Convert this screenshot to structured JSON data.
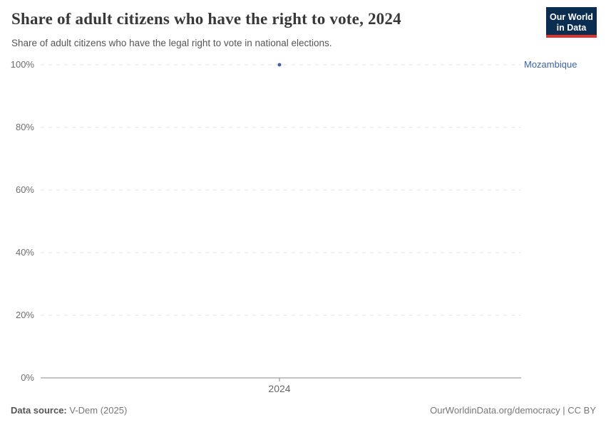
{
  "header": {
    "title": "Share of adult citizens who have the right to vote, 2024",
    "subtitle": "Share of adult citizens who have the legal right to vote in national elections.",
    "logo": {
      "line1": "Our World",
      "line2": "in Data",
      "bg_color": "#0b2d51",
      "accent_color": "#e0332c"
    }
  },
  "chart_data": {
    "type": "scatter",
    "title": "Share of adult citizens who have the right to vote, 2024",
    "series": [
      {
        "name": "Mozambique",
        "x": [
          2024
        ],
        "y": [
          100
        ]
      }
    ],
    "x_ticks": [
      2024
    ],
    "x_tick_labels": [
      "2024"
    ],
    "y_tick_values": [
      0,
      20,
      40,
      60,
      80,
      100
    ],
    "y_ticks": [
      "0%",
      "20%",
      "40%",
      "60%",
      "80%",
      "100%"
    ],
    "ylim": [
      0,
      100
    ],
    "grid": "horizontal-dashed",
    "legend_position": "right-entity-label",
    "colors": {
      "point": "#44619d",
      "entity_label": "#3d62a8",
      "gridline": "#e2e2e2",
      "axis_line": "#8a8a8a",
      "tick_label": "#6e6e6e"
    }
  },
  "footer": {
    "source_label": "Data source:",
    "source_value": " V-Dem (2025)",
    "right_text": "OurWorldinData.org/democracy | CC BY"
  }
}
